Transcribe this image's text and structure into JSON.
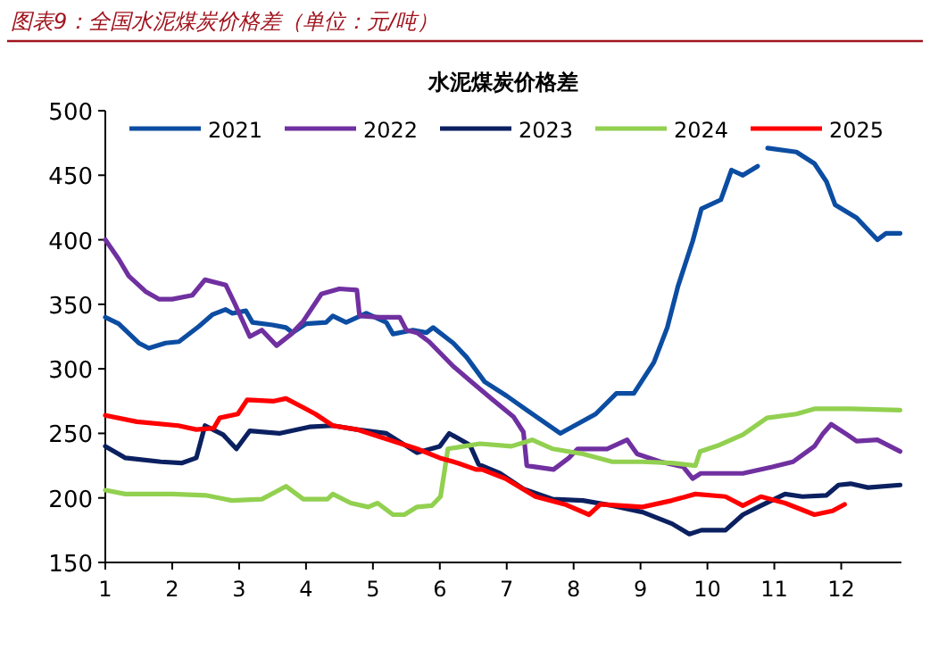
{
  "chart_data": {
    "type": "line",
    "title": "水泥煤炭价格差",
    "subtitle": "图表9：全国水泥煤炭价格差（单位：元/吨）",
    "xlim": [
      1,
      12.9
    ],
    "xticks": [
      1,
      2,
      3,
      4,
      5,
      6,
      7,
      8,
      9,
      10,
      11,
      12
    ],
    "ylim": [
      150,
      500
    ],
    "yticks": [
      150,
      200,
      250,
      300,
      350,
      400,
      450,
      500
    ],
    "grid": false,
    "legend": "top",
    "marker": "none",
    "line_style": "solid",
    "series": [
      {
        "name": "2021",
        "color": "#0c4da2",
        "x": [
          1.0,
          1.2,
          1.5,
          1.65,
          1.9,
          2.1,
          2.4,
          2.6,
          2.8,
          2.9,
          3.1,
          3.2,
          3.5,
          3.7,
          3.8,
          4.0,
          4.3,
          4.4,
          4.6,
          4.9,
          5.2,
          5.3,
          5.6,
          5.8,
          5.9,
          6.2,
          6.4,
          6.67,
          7.0,
          7.3,
          7.8,
          8.33,
          8.64,
          8.9,
          9.2,
          9.4,
          9.56,
          9.78,
          9.91,
          10.2,
          10.36,
          10.53,
          10.75,
          10.82,
          10.9,
          11.33,
          11.6,
          11.78,
          11.91,
          12.23,
          12.54,
          12.67,
          12.88
        ],
        "values": [
          340,
          335,
          320,
          316,
          320,
          321,
          333,
          342,
          346,
          343,
          345,
          336,
          334,
          332,
          328,
          335,
          336,
          341,
          336,
          343,
          336,
          327,
          330,
          328,
          332,
          320,
          309,
          290,
          279,
          268,
          250,
          265,
          281,
          281,
          305,
          332,
          364,
          399,
          424,
          431,
          454,
          450,
          457,
          null,
          471,
          468,
          459,
          445,
          427,
          417,
          400,
          405,
          405
        ]
      },
      {
        "name": "2022",
        "color": "#7030a0",
        "x": [
          1.0,
          1.2,
          1.35,
          1.6,
          1.8,
          2.0,
          2.3,
          2.49,
          2.8,
          2.94,
          3.16,
          3.34,
          3.56,
          3.78,
          3.96,
          4.23,
          4.5,
          4.76,
          4.8,
          5.1,
          5.4,
          5.5,
          5.66,
          5.84,
          6.2,
          6.45,
          6.77,
          7.1,
          7.25,
          7.3,
          7.7,
          7.93,
          8.06,
          8.5,
          8.8,
          8.95,
          9.3,
          9.64,
          9.78,
          9.9,
          10.53,
          10.97,
          11.28,
          11.6,
          11.73,
          11.85,
          12.09,
          12.23,
          12.54,
          12.88
        ],
        "values": [
          400,
          385,
          372,
          360,
          354,
          354,
          357,
          369,
          365,
          350,
          325,
          330,
          318,
          327,
          337,
          358,
          362,
          361,
          341,
          340,
          340,
          330,
          328,
          321,
          302,
          291,
          277,
          263,
          251,
          225,
          222,
          231,
          238,
          238,
          245,
          234,
          228,
          224,
          215,
          219,
          219,
          224,
          228,
          240,
          250,
          257,
          249,
          244,
          245,
          236
        ]
      },
      {
        "name": "2023",
        "color": "#0b2060",
        "x": [
          1.0,
          1.3,
          1.83,
          2.14,
          2.36,
          2.49,
          2.76,
          2.96,
          3.16,
          3.6,
          4.05,
          4.4,
          4.76,
          5.2,
          5.66,
          6.0,
          6.14,
          6.45,
          6.58,
          6.9,
          7.25,
          7.69,
          8.14,
          8.58,
          9.03,
          9.47,
          9.73,
          9.91,
          10.27,
          10.53,
          10.8,
          11.16,
          11.42,
          11.78,
          11.96,
          12.14,
          12.4,
          12.88
        ],
        "values": [
          240,
          231,
          228,
          227,
          231,
          256,
          249,
          238,
          252,
          250,
          255,
          256,
          253,
          250,
          235,
          240,
          250,
          241,
          226,
          219,
          207,
          199,
          198,
          194,
          189,
          180,
          172,
          175,
          175,
          187,
          194,
          203,
          201,
          202,
          210,
          211,
          208,
          210
        ]
      },
      {
        "name": "2024",
        "color": "#92d050",
        "x": [
          1.0,
          1.3,
          2.0,
          2.5,
          2.89,
          3.34,
          3.52,
          3.7,
          3.96,
          4.32,
          4.4,
          4.67,
          4.93,
          5.07,
          5.3,
          5.47,
          5.66,
          5.88,
          6.01,
          6.08,
          6.12,
          6.36,
          6.6,
          7.07,
          7.38,
          7.69,
          8.14,
          8.58,
          9.03,
          9.47,
          9.82,
          9.89,
          10.18,
          10.53,
          10.89,
          11.33,
          11.6,
          12.14,
          12.88
        ],
        "values": [
          206,
          203,
          203,
          202,
          198,
          199,
          204,
          209,
          199,
          199,
          203,
          196,
          193,
          196,
          187,
          187,
          193,
          194,
          201,
          224,
          238,
          240,
          242,
          240,
          245,
          238,
          234,
          228,
          228,
          227,
          225,
          236,
          241,
          249,
          262,
          265,
          269,
          269,
          268
        ]
      },
      {
        "name": "2025",
        "color": "#ff0000",
        "x": [
          1.0,
          1.47,
          2.09,
          2.36,
          2.62,
          2.71,
          2.98,
          3.12,
          3.52,
          3.7,
          3.96,
          4.14,
          4.4,
          4.76,
          5.12,
          5.66,
          6.0,
          6.27,
          6.54,
          6.63,
          6.98,
          7.43,
          7.87,
          8.23,
          8.4,
          9.03,
          9.47,
          9.82,
          10.27,
          10.53,
          10.8,
          11.16,
          11.6,
          11.87,
          12.05
        ],
        "values": [
          264,
          259,
          256,
          253,
          254,
          262,
          265,
          276,
          275,
          277,
          270,
          265,
          256,
          253,
          247,
          238,
          231,
          227,
          222,
          222,
          215,
          201,
          195,
          187,
          195,
          193,
          198,
          203,
          201,
          194,
          201,
          196,
          187,
          190,
          195
        ]
      }
    ]
  }
}
